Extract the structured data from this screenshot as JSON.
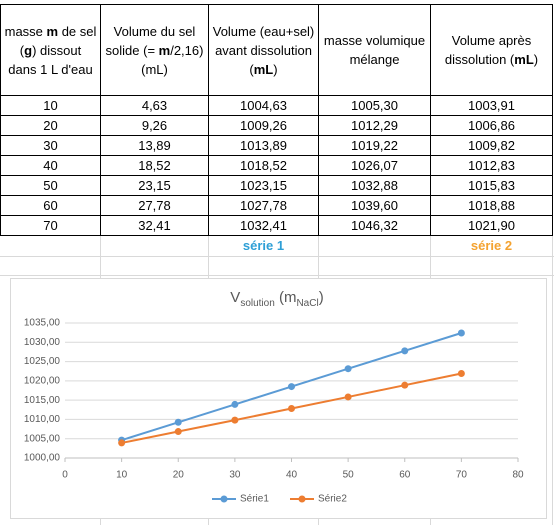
{
  "table": {
    "header": [
      [
        "masse ",
        "m",
        " de sel (",
        "g",
        ") dissout dans 1 L d'eau"
      ],
      [
        "Volume du sel solide (= ",
        "m",
        "/2,16) (mL)"
      ],
      [
        "Volume (eau+sel) avant dissolution (",
        "mL",
        ")"
      ],
      [
        "masse volumique mélange"
      ],
      [
        "Volume après dissolution (",
        "mL",
        ")"
      ]
    ],
    "rows": [
      [
        "10",
        "4,63",
        "1004,63",
        "1005,30",
        "1003,91"
      ],
      [
        "20",
        "9,26",
        "1009,26",
        "1012,29",
        "1006,86"
      ],
      [
        "30",
        "13,89",
        "1013,89",
        "1019,22",
        "1009,82"
      ],
      [
        "40",
        "18,52",
        "1018,52",
        "1026,07",
        "1012,83"
      ],
      [
        "50",
        "23,15",
        "1023,15",
        "1032,88",
        "1015,83"
      ],
      [
        "60",
        "27,78",
        "1027,78",
        "1039,60",
        "1018,88"
      ],
      [
        "70",
        "32,41",
        "1032,41",
        "1046,32",
        "1021,90"
      ]
    ],
    "series_labels": [
      "série 1",
      "série 2"
    ]
  },
  "chart_data": {
    "type": "line",
    "title": [
      "V",
      "solution",
      " (m",
      "NaCl",
      ")"
    ],
    "x": [
      10,
      20,
      30,
      40,
      50,
      60,
      70
    ],
    "series": [
      {
        "name": "Série1",
        "color": "#5b9bd5",
        "values": [
          1004.63,
          1009.26,
          1013.89,
          1018.52,
          1023.15,
          1027.78,
          1032.41
        ]
      },
      {
        "name": "Série2",
        "color": "#ed7d31",
        "values": [
          1003.91,
          1006.86,
          1009.82,
          1012.83,
          1015.83,
          1018.88,
          1021.9
        ]
      }
    ],
    "xlim": [
      0,
      80
    ],
    "xticks": [
      0,
      10,
      20,
      30,
      40,
      50,
      60,
      70,
      80
    ],
    "ylim": [
      1000,
      1035
    ],
    "yticks": [
      {
        "value": 1000,
        "label": "1000,00"
      },
      {
        "value": 1005,
        "label": "1005,00"
      },
      {
        "value": 1010,
        "label": "1010,00"
      },
      {
        "value": 1015,
        "label": "1015,00"
      },
      {
        "value": 1020,
        "label": "1020,00"
      },
      {
        "value": 1025,
        "label": "1025,00"
      },
      {
        "value": 1030,
        "label": "1030,00"
      },
      {
        "value": 1035,
        "label": "1035,00"
      }
    ],
    "grid": true,
    "legend": "bottom"
  }
}
